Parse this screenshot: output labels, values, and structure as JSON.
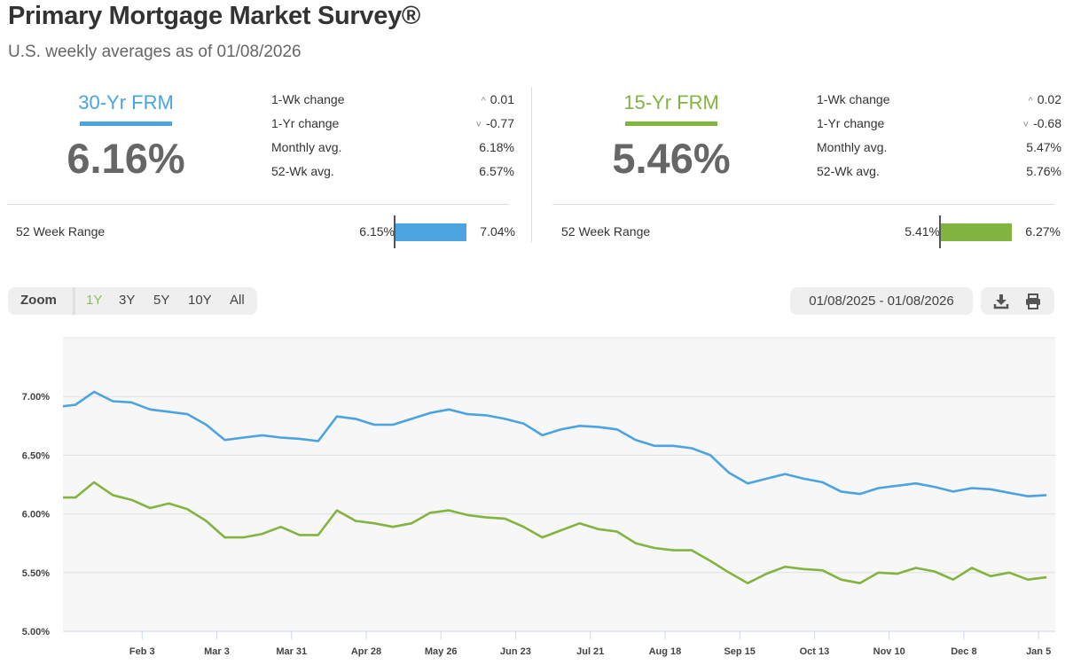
{
  "header": {
    "title": "Primary Mortgage Market Survey®",
    "subtitle": "U.S. weekly averages as of 01/08/2026"
  },
  "panels": [
    {
      "label": "30-Yr FRM",
      "rate": "6.16%",
      "color": "#4ba3e0",
      "stats": [
        {
          "label": "1-Wk change",
          "value": "0.01",
          "arrow": "^"
        },
        {
          "label": "1-Yr change",
          "value": "-0.77",
          "arrow": "˅"
        },
        {
          "label": "Monthly avg.",
          "value": "6.18%"
        },
        {
          "label": "52-Wk avg.",
          "value": "6.57%"
        }
      ],
      "range": {
        "label": "52 Week Range",
        "min": "6.15%",
        "max": "7.04%"
      }
    },
    {
      "label": "15-Yr FRM",
      "rate": "5.46%",
      "color": "#82b440",
      "stats": [
        {
          "label": "1-Wk change",
          "value": "0.02",
          "arrow": "^"
        },
        {
          "label": "1-Yr change",
          "value": "-0.68",
          "arrow": "˅"
        },
        {
          "label": "Monthly avg.",
          "value": "5.47%"
        },
        {
          "label": "52-Wk avg.",
          "value": "5.76%"
        }
      ],
      "range": {
        "label": "52 Week Range",
        "min": "5.41%",
        "max": "6.27%"
      }
    }
  ],
  "toolbar": {
    "zoom_label": "Zoom",
    "zoom_options": [
      "1Y",
      "3Y",
      "5Y",
      "10Y",
      "All"
    ],
    "active_zoom": "1Y",
    "active_color": "#8cc152",
    "date_range": "01/08/2025 - 01/08/2026"
  },
  "chart_data": {
    "type": "line",
    "x_start": "2025-01-02",
    "x_interval": "weekly",
    "ylim": [
      5.0,
      7.5
    ],
    "yticks": [
      "5.00%",
      "5.50%",
      "6.00%",
      "6.50%",
      "7.00%"
    ],
    "ytick_values": [
      5.0,
      5.5,
      6.0,
      6.5,
      7.0
    ],
    "xticks": [
      {
        "label": "Feb 3",
        "week": 4.571
      },
      {
        "label": "Mar 3",
        "week": 8.571
      },
      {
        "label": "Mar 31",
        "week": 12.571
      },
      {
        "label": "Apr 28",
        "week": 16.571
      },
      {
        "label": "May 26",
        "week": 20.571
      },
      {
        "label": "Jun 23",
        "week": 24.571
      },
      {
        "label": "Jul 21",
        "week": 28.571
      },
      {
        "label": "Aug 18",
        "week": 32.571
      },
      {
        "label": "Sep 15",
        "week": 36.571
      },
      {
        "label": "Oct 13",
        "week": 40.571
      },
      {
        "label": "Nov 10",
        "week": 44.571
      },
      {
        "label": "Dec 8",
        "week": 48.571
      },
      {
        "label": "Jan 5",
        "week": 52.571
      }
    ],
    "series": [
      {
        "name": "30-Yr FRM",
        "color": "#4ba3e0",
        "values": [
          6.91,
          6.93,
          7.04,
          6.96,
          6.95,
          6.89,
          6.87,
          6.85,
          6.76,
          6.63,
          6.65,
          6.67,
          6.65,
          6.64,
          6.62,
          6.83,
          6.81,
          6.76,
          6.76,
          6.81,
          6.86,
          6.89,
          6.85,
          6.84,
          6.81,
          6.77,
          6.67,
          6.72,
          6.75,
          6.74,
          6.72,
          6.63,
          6.58,
          6.58,
          6.56,
          6.5,
          6.35,
          6.26,
          6.3,
          6.34,
          6.3,
          6.27,
          6.19,
          6.17,
          6.22,
          6.24,
          6.26,
          6.23,
          6.19,
          6.22,
          6.21,
          6.18,
          6.15,
          6.16
        ]
      },
      {
        "name": "15-Yr FRM",
        "color": "#82b440",
        "values": [
          6.14,
          6.14,
          6.27,
          6.16,
          6.12,
          6.05,
          6.09,
          6.04,
          5.94,
          5.8,
          5.8,
          5.83,
          5.89,
          5.82,
          5.82,
          6.03,
          5.94,
          5.92,
          5.89,
          5.92,
          6.01,
          6.03,
          5.99,
          5.97,
          5.96,
          5.89,
          5.8,
          5.86,
          5.92,
          5.87,
          5.85,
          5.75,
          5.71,
          5.69,
          5.69,
          5.6,
          5.5,
          5.41,
          5.49,
          5.55,
          5.53,
          5.52,
          5.44,
          5.41,
          5.5,
          5.49,
          5.54,
          5.51,
          5.44,
          5.54,
          5.47,
          5.5,
          5.44,
          5.46
        ]
      }
    ]
  }
}
